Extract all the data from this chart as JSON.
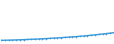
{
  "x": [
    1983,
    1984,
    1985,
    1986,
    1987,
    1988,
    1989,
    1990,
    1991,
    1992,
    1993,
    1994,
    1995,
    1996,
    1997,
    1998,
    1999,
    2000,
    2001,
    2002,
    2003,
    2004,
    2005,
    2006,
    2007,
    2008,
    2009,
    2010,
    2011,
    2012,
    2013
  ],
  "y": [
    5.0,
    5.2,
    5.4,
    5.6,
    5.8,
    6.1,
    6.4,
    6.7,
    7.0,
    7.3,
    7.6,
    8.0,
    8.4,
    8.8,
    9.2,
    9.6,
    10.1,
    10.6,
    11.1,
    11.6,
    12.1,
    12.7,
    13.3,
    14.0,
    14.7,
    15.4,
    16.2,
    17.0,
    17.8,
    18.6,
    19.5
  ],
  "line_color": "#3a9ad9",
  "background_color": "#ffffff",
  "ylim": [
    0,
    80
  ],
  "xlim": [
    1983,
    2013
  ]
}
